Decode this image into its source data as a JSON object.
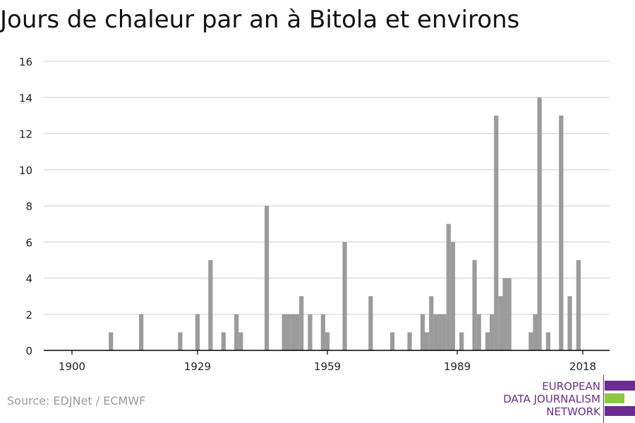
{
  "title": "Jours de chaleur par an à Bitola et environs",
  "source": "Source: EDJNet / ECMWF",
  "logo": {
    "line1": "EUROPEAN",
    "line2": "DATA JOURNALISM",
    "line3": "NETWORK"
  },
  "colors": {
    "bar": "#9b9b9b",
    "grid": "#d9d9d9",
    "axis": "#000000",
    "logo_purple": "#6a2c91",
    "logo_green": "#8dc63f"
  },
  "chart_data": {
    "type": "bar",
    "title": "Jours de chaleur par an à Bitola et environs",
    "xlabel": "",
    "ylabel": "",
    "ylim": [
      0,
      16
    ],
    "yticks": [
      0,
      2,
      4,
      6,
      8,
      10,
      12,
      14,
      16
    ],
    "xticks": [
      1900,
      1929,
      1959,
      1989,
      2018
    ],
    "xlim": [
      1900,
      2018
    ],
    "grid": true,
    "legend": "none",
    "x": [
      1909,
      1916,
      1925,
      1929,
      1932,
      1935,
      1938,
      1939,
      1945,
      1949,
      1950,
      1951,
      1952,
      1953,
      1955,
      1958,
      1959,
      1963,
      1969,
      1974,
      1978,
      1981,
      1982,
      1983,
      1984,
      1985,
      1986,
      1987,
      1988,
      1990,
      1993,
      1994,
      1996,
      1997,
      1998,
      1999,
      2000,
      2001,
      2006,
      2007,
      2008,
      2010,
      2013,
      2015,
      2017
    ],
    "values": [
      1,
      2,
      1,
      2,
      5,
      1,
      2,
      1,
      8,
      2,
      2,
      2,
      2,
      3,
      2,
      2,
      1,
      6,
      3,
      1,
      1,
      2,
      1,
      3,
      2,
      2,
      2,
      7,
      6,
      1,
      5,
      2,
      1,
      2,
      13,
      3,
      4,
      4,
      1,
      2,
      14,
      1,
      13,
      3,
      5
    ]
  }
}
